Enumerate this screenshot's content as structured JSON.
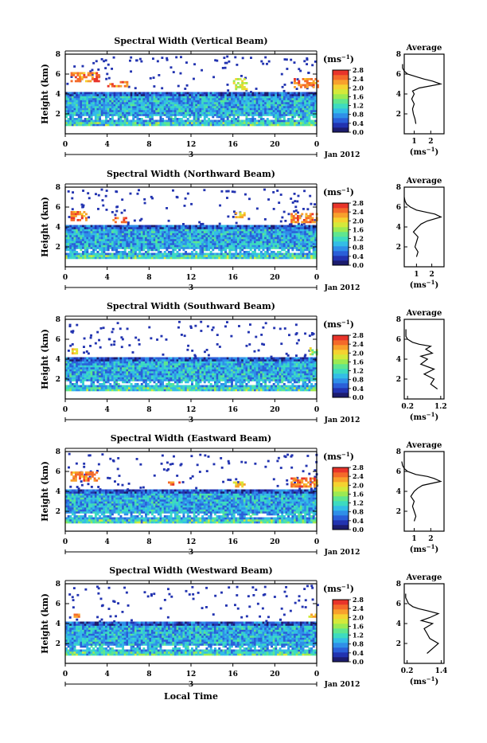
{
  "figure": {
    "xlabel": "Local Time",
    "xticks": [
      "0",
      "4",
      "8",
      "12",
      "16",
      "20",
      "0"
    ],
    "date_label": "3",
    "month_label": "Jan 2012",
    "ylabel": "Height (km)",
    "yticks": [
      "2",
      "4",
      "6",
      "8"
    ],
    "colorbar_unit": "(ms",
    "colorbar_unit_sup": "−1",
    "colorbar_unit_close": ")",
    "colorbar_ticks": [
      "0.0",
      "0.4",
      "0.8",
      "1.2",
      "1.6",
      "2.0",
      "2.4",
      "2.8"
    ],
    "avg_title": "Average",
    "avg_yticks": [
      "2",
      "4",
      "6",
      "8"
    ],
    "avg_xlabel": "(ms",
    "colorbar_colors": [
      "#1c1c6e",
      "#2233b0",
      "#2a5fd8",
      "#2f8fe8",
      "#33bde6",
      "#3ddbc0",
      "#5fe68f",
      "#9bea52",
      "#d4e93a",
      "#f5d230",
      "#f8a02c",
      "#f46a2a",
      "#e8342a"
    ]
  },
  "chart_data": [
    {
      "type": "heatmap",
      "title": "Spectral Width (Vertical Beam)",
      "x_range": [
        0,
        24
      ],
      "y_range": [
        0,
        8
      ],
      "value_range": [
        0,
        2.8
      ],
      "low_layer_km": [
        1,
        4
      ],
      "low_layer_value": 0.9,
      "upper_patches": [
        {
          "x": [
            0.5,
            3.2
          ],
          "y": [
            5.2,
            6.2
          ],
          "value": 2.7
        },
        {
          "x": [
            4.0,
            5.8
          ],
          "y": [
            4.8,
            5.3
          ],
          "value": 2.7
        },
        {
          "x": [
            16.0,
            17.2
          ],
          "y": [
            4.4,
            5.6
          ],
          "value": 2.1
        },
        {
          "x": [
            21.8,
            24.0
          ],
          "y": [
            4.6,
            5.6
          ],
          "value": 2.7
        }
      ],
      "avg_profile": {
        "x_range": [
          0.4,
          2.8
        ],
        "xticks": [
          "1",
          "2"
        ],
        "height_km": [
          1,
          1.5,
          2,
          2.5,
          3,
          3.5,
          4,
          4.3,
          4.6,
          5,
          5.3,
          5.5,
          5.7,
          6,
          6.3,
          6.6,
          7
        ],
        "value": [
          1.1,
          1.05,
          0.95,
          0.9,
          1.0,
          0.85,
          1.0,
          0.9,
          1.3,
          2.6,
          2.1,
          1.6,
          1.2,
          0.6,
          0.4,
          0.3,
          0.3
        ]
      }
    },
    {
      "type": "heatmap",
      "title": "Spectral Width (Northward Beam)",
      "x_range": [
        0,
        24
      ],
      "y_range": [
        0,
        8
      ],
      "value_range": [
        0,
        2.8
      ],
      "low_layer_km": [
        1,
        4
      ],
      "low_layer_value": 0.9,
      "upper_patches": [
        {
          "x": [
            0.5,
            2.0
          ],
          "y": [
            4.6,
            5.6
          ],
          "value": 2.7
        },
        {
          "x": [
            4.5,
            5.8
          ],
          "y": [
            4.4,
            5.0
          ],
          "value": 2.7
        },
        {
          "x": [
            16.2,
            17.0
          ],
          "y": [
            5.0,
            5.5
          ],
          "value": 2.4
        },
        {
          "x": [
            21.5,
            24.0
          ],
          "y": [
            4.4,
            5.4
          ],
          "value": 2.7
        }
      ],
      "avg_profile": {
        "x_range": [
          0.2,
          2.8
        ],
        "xticks": [
          "1",
          "2"
        ],
        "height_km": [
          1,
          1.5,
          2,
          2.5,
          3,
          3.5,
          4,
          4.3,
          4.6,
          5,
          5.3,
          5.5,
          5.7,
          6,
          6.3,
          6.6,
          7
        ],
        "value": [
          1.0,
          1.1,
          0.9,
          1.0,
          1.1,
          0.8,
          1.1,
          1.3,
          1.7,
          2.6,
          2.2,
          1.6,
          1.0,
          0.6,
          0.35,
          0.25,
          0.2
        ]
      }
    },
    {
      "type": "heatmap",
      "title": "Spectral Width (Southward Beam)",
      "x_range": [
        0,
        24
      ],
      "y_range": [
        0,
        8
      ],
      "value_range": [
        0,
        2.8
      ],
      "low_layer_km": [
        1,
        4
      ],
      "low_layer_value": 0.9,
      "upper_patches": [
        {
          "x": [
            0.6,
            1.1
          ],
          "y": [
            4.5,
            5.1
          ],
          "value": 2.3
        },
        {
          "x": [
            23.3,
            24.0
          ],
          "y": [
            4.4,
            5.2
          ],
          "value": 2.0
        }
      ],
      "avg_profile": {
        "x_range": [
          0.1,
          1.3
        ],
        "xticks": [
          "0.2",
          "1.2"
        ],
        "height_km": [
          1,
          1.5,
          2,
          2.5,
          3,
          3.5,
          4,
          4.3,
          4.6,
          5,
          5.3,
          5.5,
          5.7,
          6,
          6.3,
          6.6,
          7
        ],
        "value": [
          1.1,
          0.9,
          1.0,
          0.7,
          1.0,
          0.6,
          0.8,
          0.6,
          0.95,
          0.75,
          0.9,
          0.55,
          0.35,
          0.2,
          0.15,
          0.15,
          0.15
        ]
      }
    },
    {
      "type": "heatmap",
      "title": "Spectral Width (Eastward Beam)",
      "x_range": [
        0,
        24
      ],
      "y_range": [
        0,
        8
      ],
      "value_range": [
        0,
        2.8
      ],
      "low_layer_km": [
        1,
        4
      ],
      "low_layer_value": 0.9,
      "upper_patches": [
        {
          "x": [
            0.5,
            3.3
          ],
          "y": [
            5.0,
            6.0
          ],
          "value": 2.7
        },
        {
          "x": [
            9.8,
            10.8
          ],
          "y": [
            4.6,
            5.0
          ],
          "value": 2.7
        },
        {
          "x": [
            16.0,
            17.0
          ],
          "y": [
            4.4,
            5.0
          ],
          "value": 2.4
        },
        {
          "x": [
            21.5,
            24.0
          ],
          "y": [
            4.4,
            5.4
          ],
          "value": 2.7
        }
      ],
      "avg_profile": {
        "x_range": [
          0.4,
          2.8
        ],
        "xticks": [
          "1",
          "2"
        ],
        "height_km": [
          1,
          1.5,
          2,
          2.5,
          3,
          3.5,
          4,
          4.3,
          4.6,
          5,
          5.3,
          5.5,
          5.7,
          6,
          6.3,
          6.6,
          7
        ],
        "value": [
          1.0,
          1.1,
          1.0,
          0.9,
          1.0,
          0.8,
          1.0,
          1.2,
          1.5,
          2.6,
          2.2,
          1.8,
          1.1,
          0.6,
          0.4,
          0.3,
          0.25
        ]
      }
    },
    {
      "type": "heatmap",
      "title": "Spectral Width (Westward Beam)",
      "x_range": [
        0,
        24
      ],
      "y_range": [
        0,
        8
      ],
      "value_range": [
        0,
        2.8
      ],
      "low_layer_km": [
        1,
        4
      ],
      "low_layer_value": 0.9,
      "upper_patches": [
        {
          "x": [
            0.8,
            1.3
          ],
          "y": [
            4.6,
            5.0
          ],
          "value": 2.7
        },
        {
          "x": [
            23.2,
            24.0
          ],
          "y": [
            4.6,
            5.0
          ],
          "value": 2.3
        }
      ],
      "avg_profile": {
        "x_range": [
          0.1,
          1.5
        ],
        "xticks": [
          "0.2",
          "1.4"
        ],
        "height_km": [
          1,
          1.5,
          2,
          2.5,
          3,
          3.5,
          4,
          4.3,
          4.6,
          5,
          5.3,
          5.5,
          5.7,
          6,
          6.3,
          6.6,
          7
        ],
        "value": [
          0.9,
          1.1,
          1.3,
          1.0,
          0.9,
          0.8,
          1.1,
          0.7,
          1.0,
          1.3,
          0.9,
          0.6,
          0.4,
          0.25,
          0.2,
          0.15,
          0.15
        ]
      }
    }
  ]
}
